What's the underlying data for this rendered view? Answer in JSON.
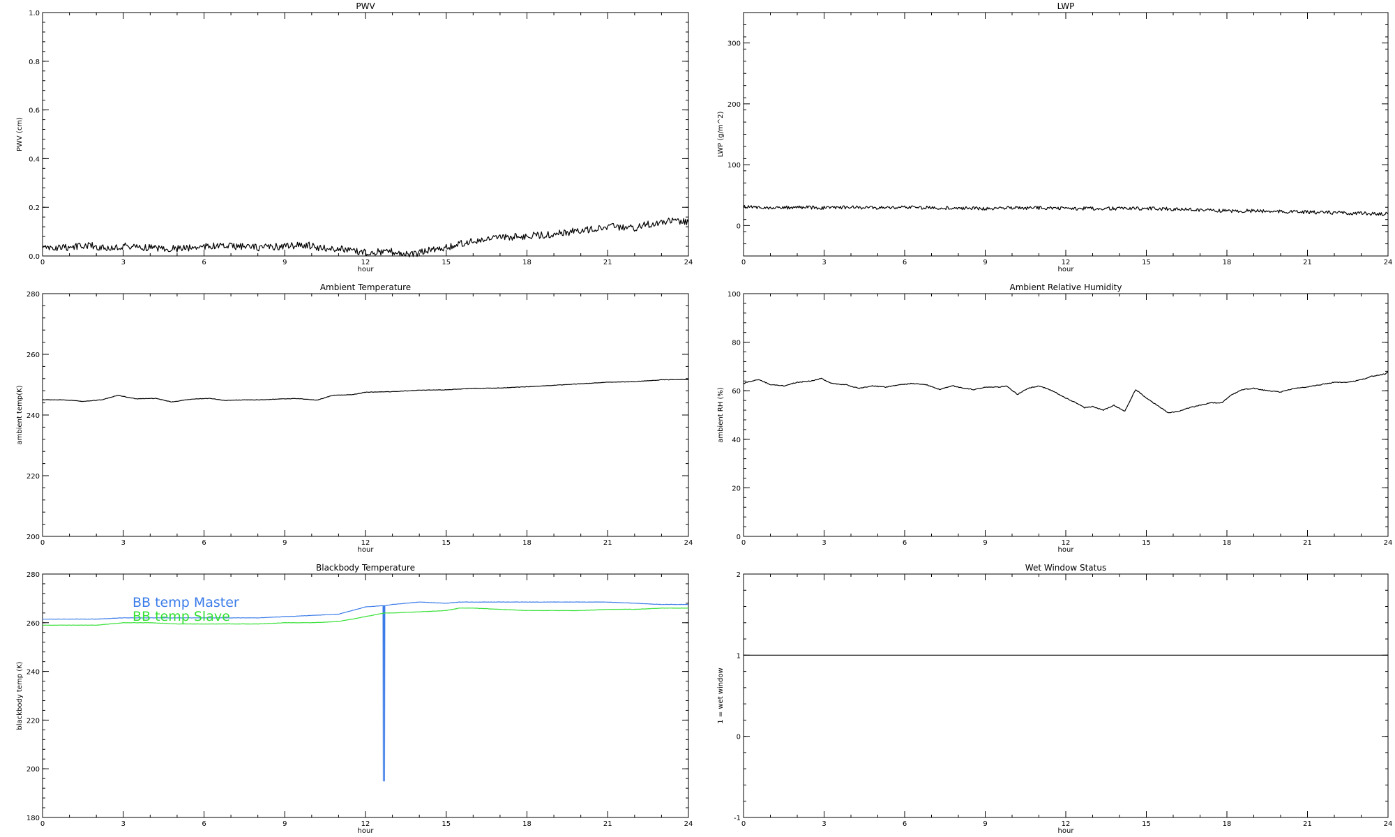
{
  "chart_data": [
    {
      "type": "line",
      "title": "PWV",
      "xlabel": "hour",
      "ylabel": "PWV (cm)",
      "xlim": [
        0,
        24
      ],
      "ylim": [
        0,
        1.0
      ],
      "xticks": [
        "0",
        "3",
        "6",
        "9",
        "12",
        "15",
        "18",
        "21",
        "24"
      ],
      "yticks": [
        "0.0",
        "0.2",
        "0.4",
        "0.6",
        "0.8",
        "1.0"
      ],
      "series": [
        {
          "color": "#000000",
          "x": [
            0,
            1,
            1.7,
            2.5,
            3,
            4,
            5,
            6,
            7,
            8,
            9,
            9.8,
            10.5,
            11,
            12,
            13,
            13.7,
            14.5,
            15,
            15.7,
            16.5,
            17,
            17.7,
            18.5,
            19,
            19.7,
            20.5,
            21,
            22,
            22.5,
            23.3,
            24
          ],
          "y": [
            0.03,
            0.035,
            0.045,
            0.03,
            0.04,
            0.035,
            0.03,
            0.04,
            0.04,
            0.035,
            0.04,
            0.045,
            0.03,
            0.03,
            0.015,
            0.02,
            0.005,
            0.03,
            0.035,
            0.055,
            0.065,
            0.075,
            0.08,
            0.085,
            0.09,
            0.1,
            0.11,
            0.12,
            0.115,
            0.13,
            0.145,
            0.14
          ]
        }
      ]
    },
    {
      "type": "line",
      "title": "LWP",
      "xlabel": "hour",
      "ylabel": "LWP (g/m^2)",
      "xlim": [
        0,
        24
      ],
      "ylim": [
        -50,
        350
      ],
      "xticks": [
        "0",
        "3",
        "6",
        "9",
        "12",
        "15",
        "18",
        "21",
        "24"
      ],
      "yticks": [
        "0",
        "100",
        "200",
        "300"
      ],
      "series": [
        {
          "color": "#000000",
          "x": [
            0,
            1,
            2,
            3,
            4,
            5,
            6,
            7,
            8,
            9,
            10,
            11,
            12,
            13,
            14,
            15,
            16,
            17,
            18,
            19,
            20,
            21,
            22,
            23,
            24
          ],
          "y": [
            31,
            29,
            30,
            29,
            30,
            29,
            30,
            29,
            29,
            28,
            29,
            29,
            28,
            28,
            28,
            28,
            27,
            26,
            24,
            24,
            23,
            22,
            21,
            20,
            19
          ]
        }
      ]
    },
    {
      "type": "line",
      "title": "Ambient Temperature",
      "xlabel": "hour",
      "ylabel": "ambient temp(K)",
      "xlim": [
        0,
        24
      ],
      "ylim": [
        200,
        280
      ],
      "xticks": [
        "0",
        "3",
        "6",
        "9",
        "12",
        "15",
        "18",
        "21",
        "24"
      ],
      "yticks": [
        "200",
        "220",
        "240",
        "260",
        "280"
      ],
      "series": [
        {
          "color": "#000000",
          "x": [
            0,
            0.8,
            1.5,
            2.2,
            2.8,
            3.5,
            4.2,
            4.8,
            5.5,
            6.2,
            6.8,
            7.5,
            8.2,
            8.8,
            9.5,
            10.2,
            10.8,
            11.5,
            12,
            13,
            14,
            15,
            16,
            17,
            18,
            19,
            20,
            21,
            22,
            23,
            24
          ],
          "y": [
            245,
            245,
            244.5,
            245,
            246.5,
            245.3,
            245.5,
            244.3,
            245.2,
            245.5,
            244.8,
            245,
            245,
            245.3,
            245.4,
            244.9,
            246.5,
            246.7,
            247.5,
            247.7,
            248.2,
            248.3,
            248.8,
            248.9,
            249.3,
            249.8,
            250.3,
            250.8,
            251,
            251.6,
            251.7
          ]
        }
      ]
    },
    {
      "type": "line",
      "title": "Ambient Relative Humidity",
      "xlabel": "hour",
      "ylabel": "ambient RH (%)",
      "xlim": [
        0,
        24
      ],
      "ylim": [
        0,
        100
      ],
      "xticks": [
        "0",
        "3",
        "6",
        "9",
        "12",
        "15",
        "18",
        "21",
        "24"
      ],
      "yticks": [
        "0",
        "20",
        "40",
        "60",
        "80",
        "100"
      ],
      "series": [
        {
          "color": "#000000",
          "x": [
            0,
            0.3,
            0.6,
            1.0,
            1.5,
            2.0,
            2.5,
            2.9,
            3.3,
            3.8,
            4.3,
            4.8,
            5.3,
            5.8,
            6.3,
            6.8,
            7.3,
            7.8,
            8.2,
            8.6,
            9.0,
            9.5,
            9.8,
            10.2,
            10.6,
            11.0,
            11.5,
            12.0,
            12.3,
            12.7,
            13.0,
            13.4,
            13.8,
            14.2,
            14.6,
            15.0,
            15.4,
            15.8,
            16.2,
            16.6,
            17.0,
            17.4,
            17.8,
            18.2,
            18.6,
            19.0,
            19.5,
            20.0,
            20.5,
            21.0,
            21.5,
            22.0,
            22.5,
            23.0,
            23.4,
            23.7,
            23.9,
            24.0
          ],
          "y": [
            63,
            64,
            64.5,
            62.5,
            62,
            63.5,
            64,
            65,
            63,
            62.5,
            61,
            62,
            61.5,
            62.5,
            63,
            62.5,
            60.5,
            62,
            61,
            60.5,
            61.5,
            61.5,
            62,
            58.5,
            61,
            62,
            60,
            57,
            55.5,
            53,
            53.5,
            52,
            54,
            51.5,
            60.5,
            57,
            54,
            51,
            51.5,
            53,
            54,
            55,
            55,
            58.5,
            60.5,
            61,
            60,
            59.5,
            61,
            61.5,
            62.5,
            63.5,
            63.5,
            64.5,
            66,
            66.5,
            67,
            68
          ]
        }
      ]
    },
    {
      "type": "line",
      "title": "Blackbody Temperature",
      "xlabel": "hour",
      "ylabel": "blackbody temp (K)",
      "xlim": [
        0,
        24
      ],
      "ylim": [
        180,
        280
      ],
      "xticks": [
        "0",
        "3",
        "6",
        "9",
        "12",
        "15",
        "18",
        "21",
        "24"
      ],
      "yticks": [
        "180",
        "200",
        "220",
        "240",
        "260",
        "280"
      ],
      "series": [
        {
          "name": "BB temp Master",
          "color": "#3a7be8",
          "x": [
            0,
            1,
            2,
            3,
            4,
            5,
            6,
            7,
            8,
            9,
            10,
            11,
            12,
            12.65,
            12.66,
            12.67,
            12.7,
            12.71,
            12.72,
            13,
            14,
            15,
            15.5,
            16,
            17,
            18,
            19,
            20,
            21,
            22,
            23,
            24
          ],
          "y": [
            261.5,
            261.5,
            261.5,
            262,
            262,
            262,
            262,
            262,
            262,
            262.5,
            263,
            263.5,
            266.5,
            267,
            195,
            267,
            267,
            195,
            267,
            267.5,
            268.5,
            268,
            268.5,
            268.5,
            268.5,
            268.5,
            268.5,
            268.5,
            268.5,
            268,
            267.5,
            267.5
          ]
        },
        {
          "name": "BB temp Slave",
          "color": "#33e033",
          "x": [
            0,
            1,
            2,
            3,
            4,
            5,
            6,
            7,
            8,
            9,
            10,
            11,
            12,
            12.7,
            13,
            14,
            15,
            15.5,
            16,
            17,
            18,
            19,
            20,
            21,
            22,
            23,
            24
          ],
          "y": [
            259,
            259,
            259,
            260,
            260,
            259.5,
            259.5,
            259.5,
            259.5,
            260,
            260,
            260.5,
            262.5,
            264,
            264,
            264.5,
            265,
            266,
            266,
            265.5,
            265,
            265,
            265,
            265.5,
            265.5,
            266,
            266
          ]
        }
      ]
    },
    {
      "type": "line",
      "title": "Wet Window Status",
      "xlabel": "hour",
      "ylabel": "1 = wet window",
      "xlim": [
        0,
        24
      ],
      "ylim": [
        -1,
        2
      ],
      "xticks": [
        "0",
        "3",
        "6",
        "9",
        "12",
        "15",
        "18",
        "21",
        "24"
      ],
      "yticks": [
        "-1",
        "0",
        "1",
        "2"
      ],
      "series": [
        {
          "color": "#000000",
          "x": [
            0,
            24
          ],
          "y": [
            1,
            1
          ]
        }
      ]
    }
  ]
}
